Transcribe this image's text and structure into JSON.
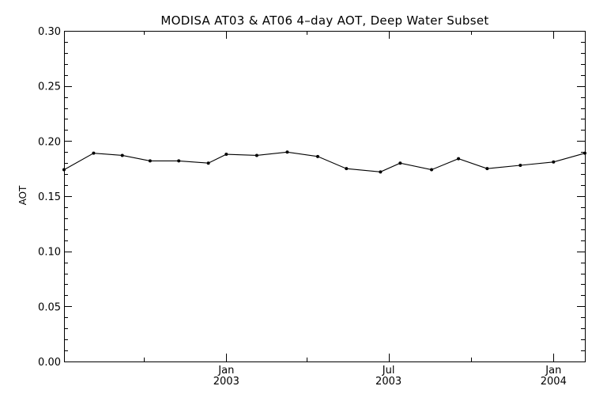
{
  "chart_data": {
    "type": "line",
    "title": "MODISA AT03 & AT06 4–day AOT, Deep Water Subset",
    "ylabel": "AOT",
    "xlabel": "",
    "ylim": [
      0.0,
      0.3
    ],
    "xlim": [
      "2002-07-04",
      "2004-02-05"
    ],
    "yticks": [
      0.0,
      0.05,
      0.1,
      0.15,
      0.2,
      0.25,
      0.3
    ],
    "ytick_labels": [
      "0.00",
      "0.05",
      "0.10",
      "0.15",
      "0.20",
      "0.25",
      "0.30"
    ],
    "xticks": [
      {
        "date": "2003-01-01",
        "month": "Jan",
        "year": "2003"
      },
      {
        "date": "2003-07-01",
        "month": "Jul",
        "year": "2003"
      },
      {
        "date": "2004-01-01",
        "month": "Jan",
        "year": "2004"
      }
    ],
    "series": [
      {
        "points": [
          {
            "x": "2002-07-04",
            "y": 0.174
          },
          {
            "x": "2002-08-06",
            "y": 0.189
          },
          {
            "x": "2002-09-07",
            "y": 0.187
          },
          {
            "x": "2002-10-08",
            "y": 0.182
          },
          {
            "x": "2002-11-09",
            "y": 0.182
          },
          {
            "x": "2002-12-12",
            "y": 0.18
          },
          {
            "x": "2003-01-01",
            "y": 0.188
          },
          {
            "x": "2003-02-04",
            "y": 0.187
          },
          {
            "x": "2003-03-10",
            "y": 0.19
          },
          {
            "x": "2003-04-13",
            "y": 0.186
          },
          {
            "x": "2003-05-15",
            "y": 0.175
          },
          {
            "x": "2003-06-22",
            "y": 0.172
          },
          {
            "x": "2003-07-14",
            "y": 0.18
          },
          {
            "x": "2003-08-18",
            "y": 0.174
          },
          {
            "x": "2003-09-17",
            "y": 0.184
          },
          {
            "x": "2003-10-19",
            "y": 0.175
          },
          {
            "x": "2003-11-25",
            "y": 0.178
          },
          {
            "x": "2004-01-01",
            "y": 0.181
          },
          {
            "x": "2004-02-05",
            "y": 0.189
          }
        ]
      }
    ],
    "grid": false,
    "legend": "none",
    "line_color": "#000000"
  }
}
